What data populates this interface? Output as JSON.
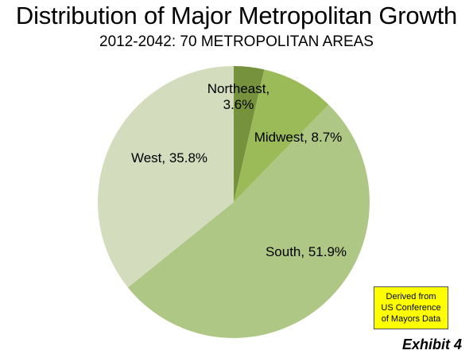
{
  "chart_data": {
    "type": "pie",
    "title": "Distribution of Major Metropolitan Growth",
    "subtitle": "2012-2042: 70 METROPOLITAN AREAS",
    "slices": [
      {
        "label": "Northeast",
        "value": 3.6,
        "display": "3.6%",
        "color": "#76923c"
      },
      {
        "label": "Midwest",
        "value": 8.7,
        "display": "8.7%",
        "color": "#9bbb59"
      },
      {
        "label": "South",
        "value": 51.9,
        "display": "51.9%",
        "color": "#afc785"
      },
      {
        "label": "West",
        "value": 35.8,
        "display": "35.8%",
        "color": "#d3ddbe"
      }
    ],
    "legend": "none"
  },
  "note": {
    "lines": [
      "Derived from",
      "US Conference",
      "of Mayors Data"
    ],
    "color": "#ffff00"
  },
  "exhibit_label": "Exhibit 4"
}
